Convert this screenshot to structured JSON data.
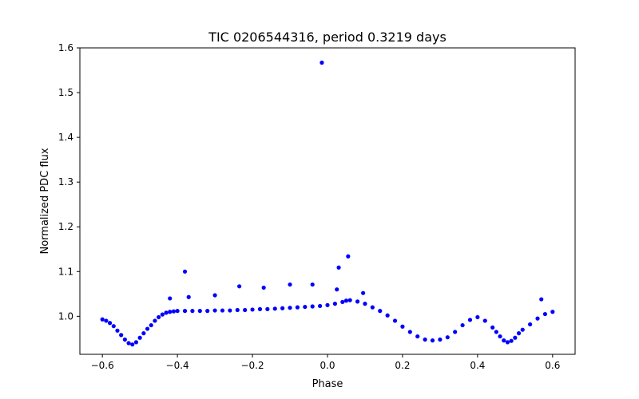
{
  "chart_data": {
    "type": "scatter",
    "title": "TIC 0206544316, period 0.3219 days",
    "xlabel": "Phase",
    "ylabel": "Normalized PDC flux",
    "xlim": [
      -0.66,
      0.66
    ],
    "ylim": [
      0.915,
      1.6
    ],
    "x_ticks": [
      -0.6,
      -0.4,
      -0.2,
      0.0,
      0.2,
      0.4,
      0.6
    ],
    "x_tick_labels": [
      "−0.6",
      "−0.4",
      "−0.2",
      "0.0",
      "0.2",
      "0.4",
      "0.6"
    ],
    "y_ticks": [
      1.0,
      1.1,
      1.2,
      1.3,
      1.4,
      1.5,
      1.6
    ],
    "y_tick_labels": [
      "1.0",
      "1.1",
      "1.2",
      "1.3",
      "1.4",
      "1.5",
      "1.6"
    ],
    "grid": false,
    "marker_color": "#0000ff",
    "series": [
      {
        "x": [
          -0.6,
          -0.59,
          -0.58,
          -0.57,
          -0.56,
          -0.55,
          -0.54,
          -0.53,
          -0.52,
          -0.51,
          -0.5,
          -0.49,
          -0.48,
          -0.47,
          -0.46,
          -0.45,
          -0.44,
          -0.43,
          -0.42,
          -0.41,
          -0.4,
          -0.38,
          -0.36,
          -0.34,
          -0.32,
          -0.3,
          -0.28,
          -0.26,
          -0.24,
          -0.22,
          -0.2,
          -0.18,
          -0.16,
          -0.14,
          -0.12,
          -0.1,
          -0.08,
          -0.06,
          -0.04,
          -0.02,
          0.0,
          0.02,
          0.04,
          0.05,
          0.06,
          0.08,
          0.1,
          0.12,
          0.14,
          0.16,
          0.18,
          0.2,
          0.22,
          0.24,
          0.26,
          0.28,
          0.3,
          0.32,
          0.34,
          0.36,
          0.38,
          0.4,
          0.42,
          0.44,
          0.45,
          0.46,
          0.47,
          0.48,
          0.49,
          0.5,
          0.51,
          0.52,
          0.54,
          0.56,
          0.58,
          0.6
        ],
        "y": [
          0.993,
          0.99,
          0.985,
          0.978,
          0.968,
          0.958,
          0.948,
          0.94,
          0.937,
          0.942,
          0.952,
          0.962,
          0.972,
          0.98,
          0.99,
          0.998,
          1.004,
          1.008,
          1.01,
          1.011,
          1.012,
          1.012,
          1.012,
          1.012,
          1.012,
          1.013,
          1.013,
          1.013,
          1.014,
          1.014,
          1.015,
          1.016,
          1.016,
          1.017,
          1.018,
          1.019,
          1.02,
          1.021,
          1.022,
          1.023,
          1.025,
          1.028,
          1.032,
          1.035,
          1.036,
          1.033,
          1.028,
          1.02,
          1.012,
          1.002,
          0.99,
          0.977,
          0.965,
          0.955,
          0.948,
          0.946,
          0.948,
          0.953,
          0.965,
          0.98,
          0.992,
          0.998,
          0.99,
          0.975,
          0.965,
          0.955,
          0.946,
          0.942,
          0.945,
          0.952,
          0.962,
          0.97,
          0.982,
          0.995,
          1.005,
          1.01
        ]
      },
      {
        "x": [
          -0.015,
          0.055,
          0.03,
          -0.38,
          -0.235,
          -0.17,
          -0.1,
          -0.04,
          0.025,
          0.095,
          -0.42,
          -0.37,
          -0.3,
          0.57
        ],
        "y": [
          1.567,
          1.134,
          1.109,
          1.1,
          1.067,
          1.064,
          1.071,
          1.071,
          1.06,
          1.052,
          1.04,
          1.043,
          1.047,
          1.038
        ]
      }
    ]
  }
}
